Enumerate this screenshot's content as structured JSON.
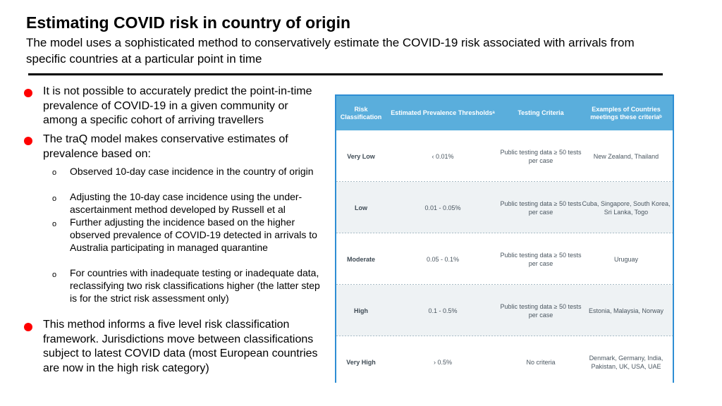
{
  "header": {
    "title": "Estimating COVID risk in country of origin",
    "subtitle": "The model uses a sophisticated method to conservatively estimate the COVID-19 risk associated with arrivals from specific countries at a particular point in time"
  },
  "bullets": {
    "b1": "It is not possible to accurately predict the point-in-time prevalence of COVID-19 in a given community or among a specific cohort of arriving travellers",
    "b2": "The  traQ model makes conservative estimates of prevalence based on:",
    "sub_marker": "o",
    "sub": [
      "Observed 10-day case incidence in the country of origin",
      "Adjusting the 10-day case incidence using the under-ascertainment method developed by Russell et al",
      "Further adjusting the incidence based on the higher observed prevalence of COVID-19 detected in arrivals to Australia participating in managed quarantine",
      "For countries with inadequate testing or inadequate data, reclassifying two risk classifications higher (the latter step is for the strict risk assessment only)"
    ],
    "b3": "This method informs a five level risk classification framework. Jurisdictions move between classifications subject to latest COVID data (most European countries are now in the high risk category)"
  },
  "table": {
    "headers": [
      "Risk Classification",
      "Estimated Prevalence Thresholdsᵃ",
      "Testing Criteria",
      "Examples of Countries meetings these criteriaᵇ"
    ],
    "rows": [
      [
        "Very Low",
        "‹ 0.01%",
        "Public testing data ≥ 50 tests per case",
        "New Zealand, Thailand"
      ],
      [
        "Low",
        "0.01 - 0.05%",
        "Public testing data ≥ 50 tests per case",
        "Cuba, Singapore, South Korea, Sri Lanka, Togo"
      ],
      [
        "Moderate",
        "0.05 - 0.1%",
        "Public testing data ≥ 50 tests per case",
        "Uruguay"
      ],
      [
        "High",
        "0.1 - 0.5%",
        "Public testing data ≥ 50 tests per case",
        "Estonia, Malaysia, Norway"
      ],
      [
        "Very High",
        "› 0.5%",
        "No criteria",
        "Denmark, Germany, India, Pakistan, UK, USA, UAE"
      ]
    ]
  },
  "colors": {
    "bullet": "#ff0000",
    "table_header": "#5aaedc",
    "table_border": "#2e8ed4",
    "row_shade": "#eef2f4"
  }
}
